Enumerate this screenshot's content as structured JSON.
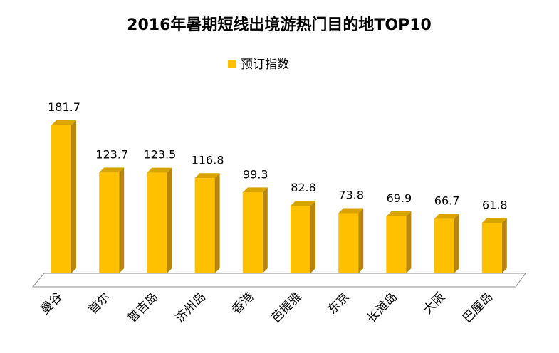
{
  "chart_data": {
    "type": "bar",
    "title": "2016年暑期短线出境游热门目的地TOP10",
    "xlabel": "",
    "ylabel": "",
    "ylim": [
      0,
      200
    ],
    "grid": false,
    "legend_position": "top-center",
    "categories": [
      "曼谷",
      "首尔",
      "普吉岛",
      "济州岛",
      "香港",
      "芭提雅",
      "东京",
      "长滩岛",
      "大阪",
      "巴厘岛"
    ],
    "series": [
      {
        "name": "预订指数",
        "values": [
          181.7,
          123.7,
          123.5,
          116.8,
          99.3,
          82.8,
          73.8,
          69.9,
          66.7,
          61.8
        ],
        "color": "#FFC000",
        "side_color": "#B8860B",
        "top_color": "#D9A300"
      }
    ],
    "floor_color": "#E6E6E6"
  }
}
